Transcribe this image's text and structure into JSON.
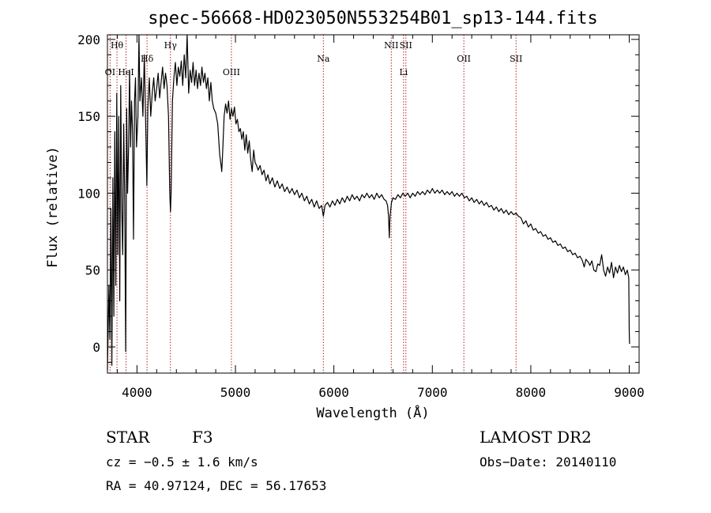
{
  "chart_data": {
    "type": "line",
    "title": "spec-56668-HD023050N553254B01_sp13-144.fits",
    "xlabel": "Wavelength (Å)",
    "ylabel": "Flux (relative)",
    "xlim": [
      3700,
      9100
    ],
    "ylim": [
      -17,
      203
    ],
    "xticks": [
      4000,
      5000,
      6000,
      7000,
      8000,
      9000
    ],
    "yticks": [
      0,
      50,
      100,
      150,
      200
    ],
    "grid": false,
    "line_color": "#000000",
    "marker_color": "#b22222",
    "spectral_lines": [
      {
        "label": "OI",
        "x": 3727,
        "label_row": "low"
      },
      {
        "label": "Hθ",
        "x": 3797,
        "label_row": "top"
      },
      {
        "label": "HeI",
        "x": 3889,
        "label_row": "low"
      },
      {
        "label": "Hδ",
        "x": 4102,
        "label_row": "mid"
      },
      {
        "label": "Hγ",
        "x": 4340,
        "label_row": "top"
      },
      {
        "label": "OIII",
        "x": 4959,
        "label_row": "low"
      },
      {
        "label": "Na",
        "x": 5893,
        "label_row": "mid"
      },
      {
        "label": "NII",
        "x": 6583,
        "label_row": "top"
      },
      {
        "label": "Li",
        "x": 6708,
        "label_row": "low"
      },
      {
        "label": "SII",
        "x": 6731,
        "label_row": "top"
      },
      {
        "label": "OII",
        "x": 7320,
        "label_row": "mid"
      },
      {
        "label": "SII",
        "x": 7850,
        "label_row": "mid"
      }
    ],
    "series": [
      {
        "points": [
          [
            3700,
            -15
          ],
          [
            3715,
            40
          ],
          [
            3725,
            5
          ],
          [
            3735,
            90
          ],
          [
            3745,
            -12
          ],
          [
            3755,
            110
          ],
          [
            3765,
            20
          ],
          [
            3775,
            140
          ],
          [
            3785,
            40
          ],
          [
            3795,
            165
          ],
          [
            3805,
            60
          ],
          [
            3815,
            150
          ],
          [
            3825,
            30
          ],
          [
            3835,
            170
          ],
          [
            3845,
            90
          ],
          [
            3855,
            60
          ],
          [
            3865,
            145
          ],
          [
            3875,
            100
          ],
          [
            3885,
            -3
          ],
          [
            3895,
            155
          ],
          [
            3905,
            100
          ],
          [
            3915,
            130
          ],
          [
            3925,
            180
          ],
          [
            3935,
            130
          ],
          [
            3945,
            160
          ],
          [
            3955,
            140
          ],
          [
            3965,
            70
          ],
          [
            3975,
            160
          ],
          [
            3985,
            175
          ],
          [
            3995,
            130
          ],
          [
            4010,
            150
          ],
          [
            4020,
            205
          ],
          [
            4030,
            160
          ],
          [
            4045,
            175
          ],
          [
            4060,
            150
          ],
          [
            4075,
            190
          ],
          [
            4090,
            140
          ],
          [
            4100,
            105
          ],
          [
            4110,
            155
          ],
          [
            4125,
            175
          ],
          [
            4140,
            150
          ],
          [
            4155,
            165
          ],
          [
            4170,
            175
          ],
          [
            4185,
            160
          ],
          [
            4200,
            168
          ],
          [
            4215,
            178
          ],
          [
            4230,
            162
          ],
          [
            4245,
            172
          ],
          [
            4260,
            182
          ],
          [
            4275,
            168
          ],
          [
            4290,
            178
          ],
          [
            4305,
            170
          ],
          [
            4320,
            150
          ],
          [
            4333,
            100
          ],
          [
            4340,
            88
          ],
          [
            4347,
            100
          ],
          [
            4360,
            160
          ],
          [
            4375,
            175
          ],
          [
            4390,
            185
          ],
          [
            4405,
            170
          ],
          [
            4420,
            182
          ],
          [
            4435,
            176
          ],
          [
            4450,
            186
          ],
          [
            4465,
            170
          ],
          [
            4480,
            190
          ],
          [
            4495,
            175
          ],
          [
            4510,
            205
          ],
          [
            4525,
            165
          ],
          [
            4540,
            180
          ],
          [
            4555,
            172
          ],
          [
            4570,
            185
          ],
          [
            4585,
            170
          ],
          [
            4600,
            180
          ],
          [
            4615,
            168
          ],
          [
            4630,
            178
          ],
          [
            4645,
            170
          ],
          [
            4660,
            182
          ],
          [
            4675,
            172
          ],
          [
            4690,
            178
          ],
          [
            4705,
            168
          ],
          [
            4720,
            175
          ],
          [
            4735,
            160
          ],
          [
            4750,
            172
          ],
          [
            4765,
            160
          ],
          [
            4780,
            155
          ],
          [
            4800,
            152
          ],
          [
            4820,
            145
          ],
          [
            4840,
            125
          ],
          [
            4855,
            118
          ],
          [
            4861,
            114
          ],
          [
            4870,
            126
          ],
          [
            4885,
            150
          ],
          [
            4900,
            158
          ],
          [
            4915,
            152
          ],
          [
            4930,
            160
          ],
          [
            4945,
            148
          ],
          [
            4960,
            155
          ],
          [
            4975,
            150
          ],
          [
            4990,
            156
          ],
          [
            5005,
            145
          ],
          [
            5020,
            148
          ],
          [
            5035,
            140
          ],
          [
            5050,
            142
          ],
          [
            5065,
            135
          ],
          [
            5080,
            140
          ],
          [
            5095,
            128
          ],
          [
            5110,
            138
          ],
          [
            5125,
            126
          ],
          [
            5140,
            134
          ],
          [
            5155,
            122
          ],
          [
            5170,
            114
          ],
          [
            5185,
            128
          ],
          [
            5200,
            120
          ],
          [
            5215,
            118
          ],
          [
            5230,
            115
          ],
          [
            5250,
            118
          ],
          [
            5270,
            112
          ],
          [
            5290,
            115
          ],
          [
            5310,
            108
          ],
          [
            5330,
            112
          ],
          [
            5350,
            106
          ],
          [
            5375,
            110
          ],
          [
            5400,
            104
          ],
          [
            5425,
            108
          ],
          [
            5450,
            103
          ],
          [
            5475,
            106
          ],
          [
            5500,
            101
          ],
          [
            5525,
            104
          ],
          [
            5550,
            100
          ],
          [
            5575,
            103
          ],
          [
            5600,
            99
          ],
          [
            5625,
            102
          ],
          [
            5650,
            97
          ],
          [
            5675,
            100
          ],
          [
            5700,
            95
          ],
          [
            5725,
            98
          ],
          [
            5750,
            93
          ],
          [
            5775,
            96
          ],
          [
            5800,
            91
          ],
          [
            5825,
            95
          ],
          [
            5850,
            90
          ],
          [
            5875,
            92
          ],
          [
            5893,
            85
          ],
          [
            5910,
            92
          ],
          [
            5935,
            94
          ],
          [
            5960,
            91
          ],
          [
            5985,
            95
          ],
          [
            6010,
            92
          ],
          [
            6035,
            96
          ],
          [
            6060,
            93
          ],
          [
            6085,
            97
          ],
          [
            6110,
            94
          ],
          [
            6135,
            98
          ],
          [
            6160,
            95
          ],
          [
            6185,
            99
          ],
          [
            6210,
            96
          ],
          [
            6235,
            98
          ],
          [
            6260,
            95
          ],
          [
            6285,
            99
          ],
          [
            6310,
            97
          ],
          [
            6335,
            100
          ],
          [
            6360,
            97
          ],
          [
            6385,
            99
          ],
          [
            6410,
            96
          ],
          [
            6435,
            100
          ],
          [
            6460,
            97
          ],
          [
            6485,
            99
          ],
          [
            6510,
            96
          ],
          [
            6530,
            95
          ],
          [
            6545,
            92
          ],
          [
            6555,
            85
          ],
          [
            6563,
            71
          ],
          [
            6570,
            85
          ],
          [
            6585,
            94
          ],
          [
            6600,
            97
          ],
          [
            6625,
            96
          ],
          [
            6650,
            99
          ],
          [
            6675,
            97
          ],
          [
            6700,
            100
          ],
          [
            6725,
            98
          ],
          [
            6750,
            100
          ],
          [
            6775,
            97
          ],
          [
            6800,
            100
          ],
          [
            6825,
            98
          ],
          [
            6850,
            101
          ],
          [
            6875,
            99
          ],
          [
            6900,
            101
          ],
          [
            6925,
            99
          ],
          [
            6950,
            102
          ],
          [
            6975,
            100
          ],
          [
            7000,
            103
          ],
          [
            7025,
            100
          ],
          [
            7050,
            102
          ],
          [
            7075,
            100
          ],
          [
            7100,
            102
          ],
          [
            7125,
            99
          ],
          [
            7150,
            101
          ],
          [
            7175,
            99
          ],
          [
            7200,
            101
          ],
          [
            7225,
            98
          ],
          [
            7250,
            100
          ],
          [
            7275,
            98
          ],
          [
            7300,
            100
          ],
          [
            7325,
            97
          ],
          [
            7350,
            98
          ],
          [
            7375,
            95
          ],
          [
            7400,
            97
          ],
          [
            7425,
            94
          ],
          [
            7450,
            96
          ],
          [
            7475,
            93
          ],
          [
            7500,
            95
          ],
          [
            7525,
            92
          ],
          [
            7550,
            94
          ],
          [
            7575,
            91
          ],
          [
            7600,
            92
          ],
          [
            7625,
            89
          ],
          [
            7650,
            91
          ],
          [
            7675,
            88
          ],
          [
            7700,
            90
          ],
          [
            7725,
            87
          ],
          [
            7750,
            89
          ],
          [
            7775,
            86
          ],
          [
            7800,
            88
          ],
          [
            7825,
            86
          ],
          [
            7850,
            87
          ],
          [
            7875,
            85
          ],
          [
            7900,
            84
          ],
          [
            7925,
            80
          ],
          [
            7950,
            82
          ],
          [
            7975,
            78
          ],
          [
            8000,
            80
          ],
          [
            8025,
            76
          ],
          [
            8050,
            77
          ],
          [
            8075,
            74
          ],
          [
            8100,
            75
          ],
          [
            8125,
            72
          ],
          [
            8150,
            73
          ],
          [
            8175,
            70
          ],
          [
            8200,
            71
          ],
          [
            8225,
            68
          ],
          [
            8250,
            69
          ],
          [
            8275,
            66
          ],
          [
            8300,
            67
          ],
          [
            8325,
            64
          ],
          [
            8350,
            65
          ],
          [
            8375,
            62
          ],
          [
            8400,
            63
          ],
          [
            8425,
            60
          ],
          [
            8450,
            61
          ],
          [
            8475,
            58
          ],
          [
            8500,
            59
          ],
          [
            8525,
            56
          ],
          [
            8542,
            52
          ],
          [
            8560,
            57
          ],
          [
            8585,
            55
          ],
          [
            8600,
            53
          ],
          [
            8620,
            56
          ],
          [
            8640,
            50
          ],
          [
            8662,
            49
          ],
          [
            8680,
            54
          ],
          [
            8700,
            53
          ],
          [
            8720,
            60
          ],
          [
            8740,
            50
          ],
          [
            8760,
            46
          ],
          [
            8780,
            52
          ],
          [
            8800,
            48
          ],
          [
            8820,
            55
          ],
          [
            8840,
            45
          ],
          [
            8860,
            52
          ],
          [
            8880,
            48
          ],
          [
            8900,
            53
          ],
          [
            8920,
            49
          ],
          [
            8940,
            52
          ],
          [
            8960,
            47
          ],
          [
            8980,
            50
          ],
          [
            8995,
            45
          ],
          [
            9000,
            10
          ],
          [
            9003,
            2
          ]
        ]
      }
    ]
  },
  "footer": {
    "object_class": "STAR",
    "subclass": "F3",
    "survey": "LAMOST DR2",
    "redshift": "cz = −0.5 ± 1.6 km/s",
    "obs_date": "Obs−Date: 20140110",
    "coords": "RA =  40.97124, DEC =  56.17653"
  }
}
